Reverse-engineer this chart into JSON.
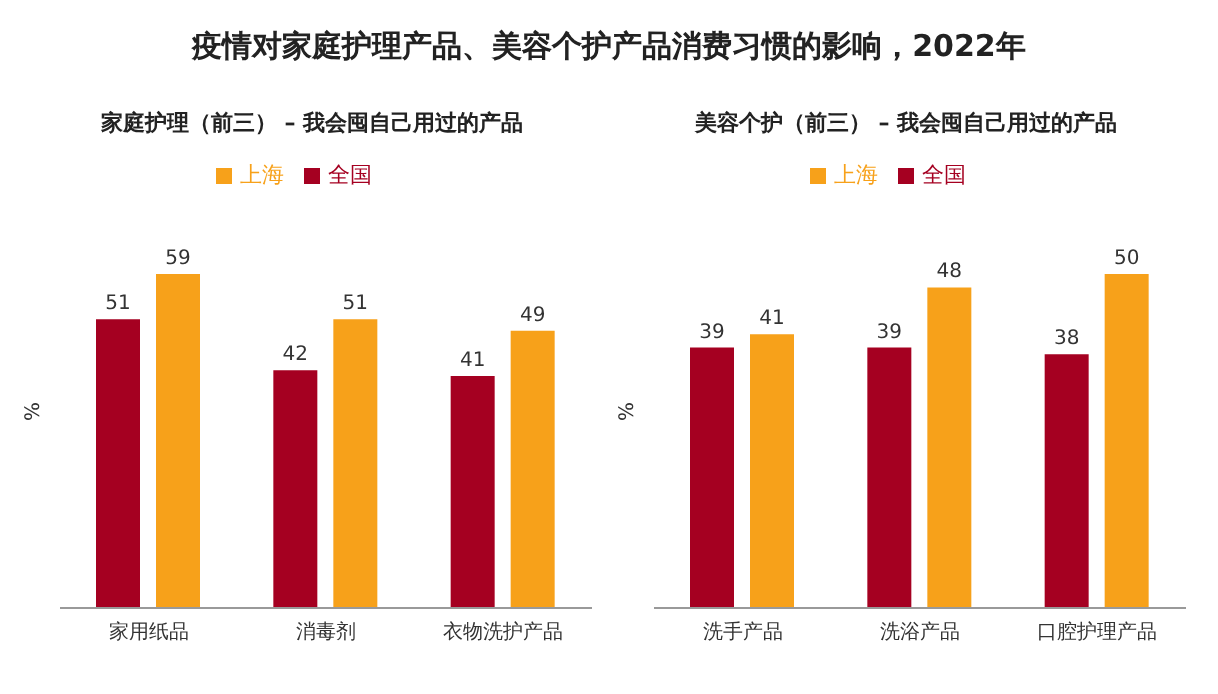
{
  "chart_data": [
    {
      "type": "bar",
      "title": "疫情对家庭护理产品、美容个护产品消费习惯的影响，2022年",
      "subtitle": "家庭护理（前三） – 我会囤自己用过的产品",
      "ylabel": "%",
      "categories": [
        "家用纸品",
        "消毒剂",
        "衣物洗护产品"
      ],
      "series": [
        {
          "name": "全国",
          "color": "#a50021",
          "values": [
            51,
            42,
            41
          ]
        },
        {
          "name": "上海",
          "color": "#f7a11a",
          "values": [
            59,
            51,
            49
          ]
        }
      ],
      "data_labels": true,
      "legend": "top",
      "grid": false
    },
    {
      "type": "bar",
      "subtitle": "美容个护（前三） – 我会囤自己用过的产品",
      "ylabel": "%",
      "categories": [
        "洗手产品",
        "洗浴产品",
        "口腔护理产品"
      ],
      "series": [
        {
          "name": "全国",
          "color": "#a50021",
          "values": [
            39,
            39,
            38
          ]
        },
        {
          "name": "上海",
          "color": "#f7a11a",
          "values": [
            41,
            48,
            50
          ]
        }
      ],
      "data_labels": true,
      "legend": "top",
      "grid": false
    }
  ]
}
